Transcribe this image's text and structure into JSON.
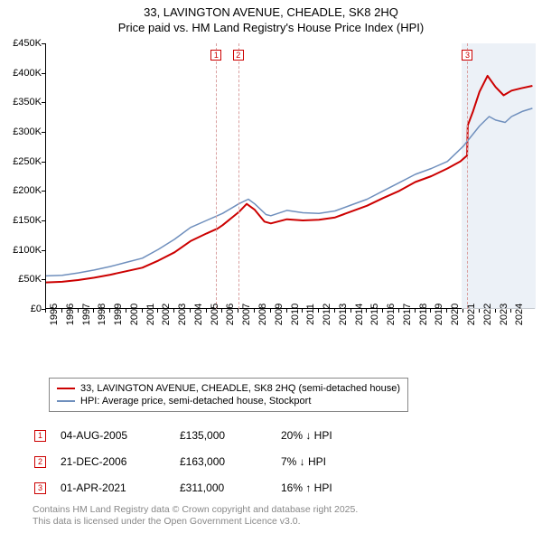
{
  "title_line1": "33, LAVINGTON AVENUE, CHEADLE, SK8 2HQ",
  "title_line2": "Price paid vs. HM Land Registry's House Price Index (HPI)",
  "chart": {
    "type": "line",
    "background_color": "#ffffff",
    "x_domain": [
      1995,
      2025.5
    ],
    "y_domain": [
      0,
      450000
    ],
    "yticks": [
      0,
      50000,
      100000,
      150000,
      200000,
      250000,
      300000,
      350000,
      400000,
      450000
    ],
    "ytick_labels": [
      "£0",
      "£50K",
      "£100K",
      "£150K",
      "£200K",
      "£250K",
      "£300K",
      "£350K",
      "£400K",
      "£450K"
    ],
    "xticks": [
      1995,
      1996,
      1997,
      1998,
      1999,
      2000,
      2001,
      2002,
      2003,
      2004,
      2005,
      2006,
      2007,
      2008,
      2009,
      2010,
      2011,
      2012,
      2013,
      2014,
      2015,
      2016,
      2017,
      2018,
      2019,
      2020,
      2021,
      2022,
      2023,
      2024
    ],
    "tick_fontsize": 11,
    "shade_ranges": [
      {
        "x0": 2020.9,
        "x1": 2025.5,
        "color": "#e9eff6",
        "opacity": 0.85
      }
    ],
    "vlines": [
      {
        "x": 2005.6,
        "color": "#d9a0a0"
      },
      {
        "x": 2006.97,
        "color": "#d9a0a0"
      },
      {
        "x": 2021.25,
        "color": "#d9a0a0"
      }
    ],
    "markers_on_chart": [
      {
        "n": "1",
        "x": 2005.6,
        "y": 430000
      },
      {
        "n": "2",
        "x": 2006.97,
        "y": 430000
      },
      {
        "n": "3",
        "x": 2021.25,
        "y": 430000
      }
    ],
    "series": [
      {
        "name": "price_paid",
        "color": "#cc0000",
        "width": 2.0,
        "data": [
          [
            1995,
            45000
          ],
          [
            1996,
            46000
          ],
          [
            1997,
            49000
          ],
          [
            1998,
            53000
          ],
          [
            1999,
            58000
          ],
          [
            2000,
            64000
          ],
          [
            2001,
            70000
          ],
          [
            2002,
            82000
          ],
          [
            2003,
            96000
          ],
          [
            2004,
            115000
          ],
          [
            2005,
            128000
          ],
          [
            2005.58,
            135000
          ],
          [
            2005.62,
            135000
          ],
          [
            2006,
            142000
          ],
          [
            2006.95,
            163000
          ],
          [
            2007,
            164000
          ],
          [
            2007.5,
            178000
          ],
          [
            2008,
            168000
          ],
          [
            2008.6,
            148000
          ],
          [
            2009,
            145000
          ],
          [
            2010,
            152000
          ],
          [
            2011,
            150000
          ],
          [
            2012,
            151000
          ],
          [
            2013,
            155000
          ],
          [
            2014,
            165000
          ],
          [
            2015,
            175000
          ],
          [
            2016,
            188000
          ],
          [
            2017,
            200000
          ],
          [
            2018,
            215000
          ],
          [
            2019,
            225000
          ],
          [
            2020,
            238000
          ],
          [
            2020.8,
            250000
          ],
          [
            2021.23,
            260000
          ],
          [
            2021.27,
            311000
          ],
          [
            2021.6,
            335000
          ],
          [
            2022,
            368000
          ],
          [
            2022.5,
            395000
          ],
          [
            2023,
            376000
          ],
          [
            2023.5,
            362000
          ],
          [
            2024,
            370000
          ],
          [
            2024.6,
            374000
          ],
          [
            2025.3,
            378000
          ]
        ]
      },
      {
        "name": "hpi",
        "color": "#6f8fbd",
        "width": 1.5,
        "data": [
          [
            1995,
            56000
          ],
          [
            1996,
            57000
          ],
          [
            1997,
            61000
          ],
          [
            1998,
            66000
          ],
          [
            1999,
            72000
          ],
          [
            2000,
            79000
          ],
          [
            2001,
            86000
          ],
          [
            2002,
            101000
          ],
          [
            2003,
            118000
          ],
          [
            2004,
            138000
          ],
          [
            2005,
            150000
          ],
          [
            2006,
            162000
          ],
          [
            2007,
            178000
          ],
          [
            2007.6,
            186000
          ],
          [
            2008,
            178000
          ],
          [
            2008.7,
            160000
          ],
          [
            2009,
            158000
          ],
          [
            2010,
            167000
          ],
          [
            2011,
            163000
          ],
          [
            2012,
            162000
          ],
          [
            2013,
            166000
          ],
          [
            2014,
            176000
          ],
          [
            2015,
            186000
          ],
          [
            2016,
            200000
          ],
          [
            2017,
            214000
          ],
          [
            2018,
            228000
          ],
          [
            2019,
            238000
          ],
          [
            2020,
            250000
          ],
          [
            2021,
            276000
          ],
          [
            2022,
            310000
          ],
          [
            2022.6,
            326000
          ],
          [
            2023,
            320000
          ],
          [
            2023.6,
            316000
          ],
          [
            2024,
            326000
          ],
          [
            2024.7,
            335000
          ],
          [
            2025.3,
            340000
          ]
        ]
      }
    ]
  },
  "legend": {
    "items": [
      {
        "color": "#cc0000",
        "label": "33, LAVINGTON AVENUE, CHEADLE, SK8 2HQ (semi-detached house)"
      },
      {
        "color": "#6f8fbd",
        "label": "HPI: Average price, semi-detached house, Stockport"
      }
    ]
  },
  "events": [
    {
      "n": "1",
      "date": "04-AUG-2005",
      "price": "£135,000",
      "delta": "20% ↓ HPI"
    },
    {
      "n": "2",
      "date": "21-DEC-2006",
      "price": "£163,000",
      "delta": "7% ↓ HPI"
    },
    {
      "n": "3",
      "date": "01-APR-2021",
      "price": "£311,000",
      "delta": "16% ↑ HPI"
    }
  ],
  "footer_line1": "Contains HM Land Registry data © Crown copyright and database right 2025.",
  "footer_line2": "This data is licensed under the Open Government Licence v3.0."
}
